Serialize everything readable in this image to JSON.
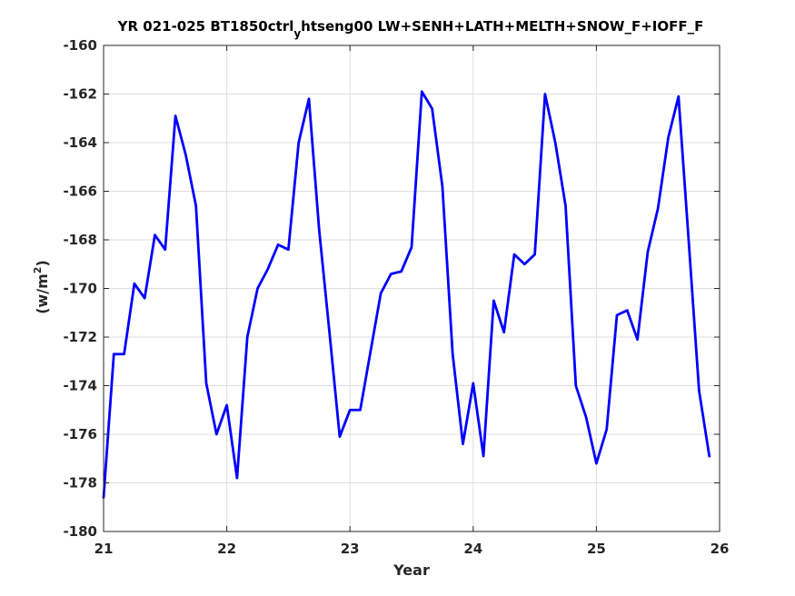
{
  "chart_data": {
    "type": "line",
    "title": {
      "main": "YR 021-025 BT1850ctrl",
      "subscript": "y",
      "rest": "htseng00 LW+SENH+LATH+MELTH+SNOW_F+IOFF_F"
    },
    "xlabel": "Year",
    "ylabel": {
      "main": "(w/m",
      "superscript": "2",
      "close": ")"
    },
    "xlim": [
      21,
      26
    ],
    "ylim": [
      -180,
      -160
    ],
    "xticks": [
      21,
      22,
      23,
      24,
      25,
      26
    ],
    "xtick_labels": [
      "21",
      "22",
      "23",
      "24",
      "25",
      "26"
    ],
    "yticks": [
      -180,
      -178,
      -176,
      -174,
      -172,
      -170,
      -168,
      -166,
      -164,
      -162,
      -160
    ],
    "ytick_labels": [
      "-180",
      "-178",
      "-176",
      "-174",
      "-172",
      "-170",
      "-168",
      "-166",
      "-164",
      "-162",
      "-160"
    ],
    "grid": true,
    "series": [
      {
        "color": "#0000ff",
        "x": [
          21.0,
          21.0833,
          21.1667,
          21.25,
          21.3333,
          21.4167,
          21.5,
          21.5833,
          21.6667,
          21.75,
          21.8333,
          21.9167,
          22.0,
          22.0833,
          22.1667,
          22.25,
          22.3333,
          22.4167,
          22.5,
          22.5833,
          22.6667,
          22.75,
          22.8333,
          22.9167,
          23.0,
          23.0833,
          23.1667,
          23.25,
          23.3333,
          23.4167,
          23.5,
          23.5833,
          23.6667,
          23.75,
          23.8333,
          23.9167,
          24.0,
          24.0833,
          24.1667,
          24.25,
          24.3333,
          24.4167,
          24.5,
          24.5833,
          24.6667,
          24.75,
          24.8333,
          24.9167,
          25.0,
          25.0833,
          25.1667,
          25.25,
          25.3333,
          25.4167,
          25.5,
          25.5833,
          25.6667,
          25.75,
          25.8333,
          25.9167
        ],
        "y": [
          -178.6,
          -172.7,
          -172.7,
          -169.8,
          -170.4,
          -167.8,
          -168.4,
          -162.9,
          -164.5,
          -166.6,
          -173.9,
          -176.0,
          -174.8,
          -177.8,
          -172.0,
          -170.0,
          -169.2,
          -168.2,
          -168.4,
          -164.0,
          -162.2,
          -167.6,
          -171.8,
          -176.1,
          -175.0,
          -175.0,
          -172.6,
          -170.2,
          -169.4,
          -169.3,
          -168.3,
          -161.9,
          -162.6,
          -165.8,
          -172.7,
          -176.4,
          -173.9,
          -176.9,
          -170.5,
          -171.8,
          -168.6,
          -169.0,
          -168.6,
          -162.0,
          -164.0,
          -166.6,
          -174.0,
          -175.3,
          -177.2,
          -175.8,
          -171.1,
          -170.9,
          -172.1,
          -168.5,
          -166.7,
          -163.8,
          -162.1,
          -168.1,
          -174.2,
          -176.9
        ]
      }
    ]
  }
}
